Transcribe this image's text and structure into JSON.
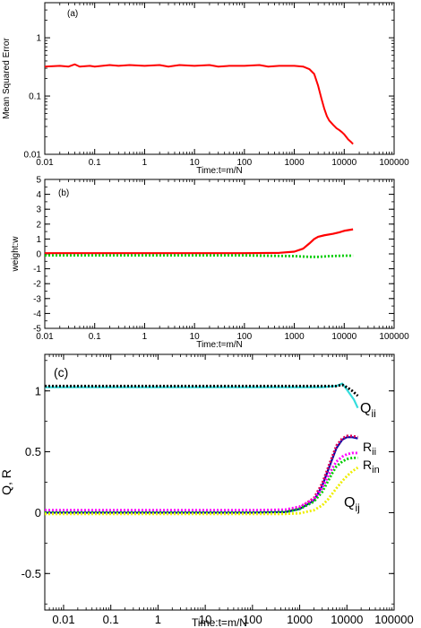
{
  "chart_data": [
    {
      "type": "line",
      "panel_label": "(a)",
      "xlabel": "Time:t=m/N",
      "ylabel": "Mean Squared Error",
      "xscale": "log",
      "yscale": "log",
      "xlim": [
        0.01,
        100000
      ],
      "ylim": [
        0.01,
        4
      ],
      "x_ticks": [
        "0.01",
        "0.1",
        "1",
        "10",
        "100",
        "1000",
        "10000",
        "100000"
      ],
      "y_ticks": [
        "0.01",
        "0.1",
        "1"
      ],
      "grid": false,
      "series": [
        {
          "color": "#ff0000",
          "style": "solid",
          "points": [
            [
              0.01,
              0.32
            ],
            [
              0.02,
              0.33
            ],
            [
              0.03,
              0.32
            ],
            [
              0.04,
              0.35
            ],
            [
              0.05,
              0.32
            ],
            [
              0.08,
              0.33
            ],
            [
              0.1,
              0.32
            ],
            [
              0.2,
              0.34
            ],
            [
              0.3,
              0.33
            ],
            [
              0.5,
              0.34
            ],
            [
              1,
              0.33
            ],
            [
              2,
              0.34
            ],
            [
              3,
              0.32
            ],
            [
              5,
              0.34
            ],
            [
              10,
              0.33
            ],
            [
              20,
              0.34
            ],
            [
              30,
              0.32
            ],
            [
              50,
              0.33
            ],
            [
              100,
              0.33
            ],
            [
              200,
              0.34
            ],
            [
              300,
              0.32
            ],
            [
              500,
              0.33
            ],
            [
              1000,
              0.33
            ],
            [
              1500,
              0.32
            ],
            [
              2000,
              0.29
            ],
            [
              2500,
              0.24
            ],
            [
              3000,
              0.15
            ],
            [
              3500,
              0.09
            ],
            [
              4000,
              0.06
            ],
            [
              4500,
              0.045
            ],
            [
              5000,
              0.038
            ],
            [
              6000,
              0.032
            ],
            [
              7000,
              0.028
            ],
            [
              8000,
              0.026
            ],
            [
              9000,
              0.024
            ],
            [
              10000,
              0.022
            ],
            [
              12000,
              0.018
            ],
            [
              14000,
              0.016
            ],
            [
              15000,
              0.015
            ]
          ]
        }
      ]
    },
    {
      "type": "line",
      "panel_label": "(b)",
      "xlabel": "Time:t=m/N",
      "ylabel": "weight:w",
      "xscale": "log",
      "xlim": [
        0.01,
        100000
      ],
      "ylim": [
        -5,
        5
      ],
      "x_ticks": [
        "0.01",
        "0.1",
        "1",
        "10",
        "100",
        "1000",
        "10000",
        "100000"
      ],
      "y_ticks": [
        "-5",
        "-4",
        "-3",
        "-2",
        "-1",
        "0",
        "1",
        "2",
        "3",
        "4",
        "5"
      ],
      "grid": false,
      "series": [
        {
          "color": "#ff0000",
          "style": "solid",
          "points": [
            [
              0.01,
              0.05
            ],
            [
              1,
              0.05
            ],
            [
              100,
              0.05
            ],
            [
              500,
              0.07
            ],
            [
              1000,
              0.15
            ],
            [
              1500,
              0.35
            ],
            [
              2000,
              0.7
            ],
            [
              2500,
              1.0
            ],
            [
              3000,
              1.15
            ],
            [
              4000,
              1.25
            ],
            [
              6000,
              1.35
            ],
            [
              8000,
              1.45
            ],
            [
              10000,
              1.55
            ],
            [
              15000,
              1.65
            ]
          ]
        },
        {
          "color": "#00cc00",
          "style": "dotted",
          "points": [
            [
              0.01,
              -0.1
            ],
            [
              1,
              -0.1
            ],
            [
              100,
              -0.1
            ],
            [
              1000,
              -0.15
            ],
            [
              2000,
              -0.2
            ],
            [
              3000,
              -0.2
            ],
            [
              5000,
              -0.15
            ],
            [
              10000,
              -0.12
            ],
            [
              15000,
              -0.12
            ]
          ]
        }
      ]
    },
    {
      "type": "line",
      "panel_label": "(c)",
      "xlabel": "Time:t=m/N",
      "ylabel": "Q, R",
      "xscale": "log",
      "xlim": [
        0.004,
        100000
      ],
      "ylim": [
        -0.8,
        1.3
      ],
      "x_ticks": [
        "0.01",
        "0.1",
        "1",
        "10",
        "100",
        "1000",
        "10000",
        "100000"
      ],
      "y_ticks": [
        "-0.5",
        "0",
        "0.5",
        "1"
      ],
      "grid": false,
      "series": [
        {
          "name": "Qii",
          "color": "#33dddd",
          "style": "solid",
          "points": [
            [
              0.004,
              1.03
            ],
            [
              1,
              1.03
            ],
            [
              100,
              1.03
            ],
            [
              1000,
              1.03
            ],
            [
              3000,
              1.03
            ],
            [
              6000,
              1.04
            ],
            [
              8000,
              1.06
            ],
            [
              10000,
              1.01
            ],
            [
              14000,
              0.93
            ],
            [
              17000,
              0.86
            ]
          ]
        },
        {
          "color": "#000000",
          "style": "dotted",
          "points": [
            [
              0.004,
              1.04
            ],
            [
              1,
              1.04
            ],
            [
              100,
              1.04
            ],
            [
              1000,
              1.04
            ],
            [
              3000,
              1.04
            ],
            [
              6000,
              1.04
            ],
            [
              8000,
              1.05
            ],
            [
              10000,
              1.03
            ],
            [
              13000,
              1.0
            ],
            [
              17000,
              0.96
            ]
          ]
        },
        {
          "name": "Rii",
          "color": "#0000aa",
          "style": "solid",
          "points": [
            [
              0.004,
              0.0
            ],
            [
              100,
              0.0
            ],
            [
              500,
              0.005
            ],
            [
              1000,
              0.03
            ],
            [
              2000,
              0.1
            ],
            [
              3000,
              0.22
            ],
            [
              4000,
              0.35
            ],
            [
              5000,
              0.45
            ],
            [
              6000,
              0.53
            ],
            [
              8000,
              0.6
            ],
            [
              10000,
              0.62
            ],
            [
              13000,
              0.62
            ],
            [
              17000,
              0.61
            ]
          ]
        },
        {
          "color": "#dd0055",
          "style": "dotted",
          "points": [
            [
              0.004,
              0.0
            ],
            [
              100,
              0.0
            ],
            [
              500,
              0.01
            ],
            [
              1000,
              0.04
            ],
            [
              2000,
              0.12
            ],
            [
              3000,
              0.24
            ],
            [
              4000,
              0.37
            ],
            [
              5000,
              0.47
            ],
            [
              6000,
              0.55
            ],
            [
              8000,
              0.61
            ],
            [
              10000,
              0.63
            ],
            [
              13000,
              0.63
            ],
            [
              17000,
              0.62
            ]
          ]
        },
        {
          "name": "Rin",
          "color": "#ff00ff",
          "style": "dotted",
          "points": [
            [
              0.004,
              0.02
            ],
            [
              100,
              0.02
            ],
            [
              500,
              0.025
            ],
            [
              1000,
              0.05
            ],
            [
              2000,
              0.11
            ],
            [
              3000,
              0.2
            ],
            [
              4000,
              0.3
            ],
            [
              5000,
              0.37
            ],
            [
              6000,
              0.42
            ],
            [
              8000,
              0.46
            ],
            [
              10000,
              0.48
            ],
            [
              13000,
              0.49
            ],
            [
              17000,
              0.49
            ]
          ]
        },
        {
          "color": "#00cc00",
          "style": "dotted",
          "points": [
            [
              0.004,
              0.0
            ],
            [
              100,
              0.0
            ],
            [
              500,
              0.005
            ],
            [
              1000,
              0.03
            ],
            [
              2000,
              0.09
            ],
            [
              3000,
              0.17
            ],
            [
              4000,
              0.26
            ],
            [
              5000,
              0.33
            ],
            [
              6000,
              0.38
            ],
            [
              8000,
              0.42
            ],
            [
              10000,
              0.44
            ],
            [
              13000,
              0.45
            ],
            [
              17000,
              0.45
            ]
          ]
        },
        {
          "name": "Qij",
          "color": "#eeee00",
          "style": "dotted",
          "points": [
            [
              0.004,
              -0.01
            ],
            [
              100,
              -0.01
            ],
            [
              500,
              -0.01
            ],
            [
              1000,
              -0.005
            ],
            [
              2000,
              0.02
            ],
            [
              3000,
              0.06
            ],
            [
              4000,
              0.11
            ],
            [
              5000,
              0.16
            ],
            [
              6000,
              0.2
            ],
            [
              8000,
              0.26
            ],
            [
              10000,
              0.3
            ],
            [
              13000,
              0.34
            ],
            [
              17000,
              0.37
            ]
          ]
        }
      ]
    }
  ]
}
